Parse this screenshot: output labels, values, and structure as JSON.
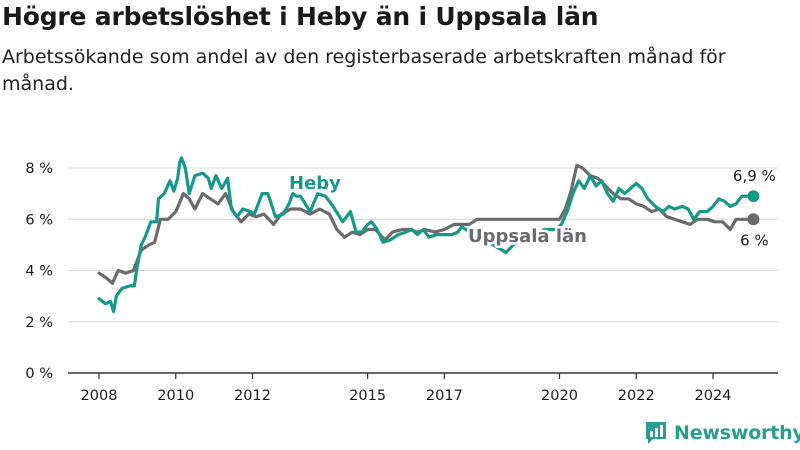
{
  "header": {
    "title": "Högre arbetslöshet i Heby än i Uppsala län",
    "subtitle": "Arbetssökande som andel av den registerbaserade arbetskraften månad för månad."
  },
  "colors": {
    "heby": "#17998a",
    "uppsala": "#6b6b6e",
    "grid": "#d9d9d9",
    "brand": "#2a9d8f"
  },
  "brand": {
    "name": "Newsworthy",
    "icon": "bar-chart-logo-icon"
  },
  "chart_data": {
    "type": "line",
    "title": "Högre arbetslöshet i Heby än i Uppsala län",
    "xlabel": "",
    "ylabel": "",
    "xlim": [
      2007.75,
      2025.6
    ],
    "ylim": [
      0,
      8.5
    ],
    "y_ticks": [
      0,
      2,
      4,
      6,
      8
    ],
    "y_tick_labels": [
      "0 %",
      "2 %",
      "4 %",
      "6 %",
      "8 %"
    ],
    "x_ticks": [
      2008,
      2010,
      2012,
      2015,
      2017,
      2020,
      2022,
      2024
    ],
    "x_tick_labels": [
      "2008",
      "2010",
      "2012",
      "2015",
      "2017",
      "2020",
      "2022",
      "2024"
    ],
    "grid": true,
    "series": [
      {
        "name": "Heby",
        "end_label": "6,9 %",
        "points": [
          [
            2008.0,
            2.9
          ],
          [
            2008.17,
            2.7
          ],
          [
            2008.3,
            2.8
          ],
          [
            2008.38,
            2.4
          ],
          [
            2008.45,
            3.0
          ],
          [
            2008.6,
            3.3
          ],
          [
            2008.8,
            3.4
          ],
          [
            2008.92,
            3.4
          ],
          [
            2009.0,
            4.2
          ],
          [
            2009.1,
            5.0
          ],
          [
            2009.2,
            5.3
          ],
          [
            2009.35,
            5.9
          ],
          [
            2009.5,
            5.9
          ],
          [
            2009.55,
            6.8
          ],
          [
            2009.7,
            7.0
          ],
          [
            2009.85,
            7.5
          ],
          [
            2009.95,
            7.1
          ],
          [
            2010.05,
            7.6
          ],
          [
            2010.1,
            8.2
          ],
          [
            2010.15,
            8.4
          ],
          [
            2010.25,
            8.0
          ],
          [
            2010.35,
            7.0
          ],
          [
            2010.5,
            7.7
          ],
          [
            2010.7,
            7.8
          ],
          [
            2010.85,
            7.6
          ],
          [
            2010.92,
            7.2
          ],
          [
            2011.05,
            7.7
          ],
          [
            2011.2,
            7.2
          ],
          [
            2011.35,
            7.6
          ],
          [
            2011.45,
            6.4
          ],
          [
            2011.6,
            6.1
          ],
          [
            2011.75,
            6.4
          ],
          [
            2011.95,
            6.3
          ],
          [
            2012.05,
            6.2
          ],
          [
            2012.25,
            7.0
          ],
          [
            2012.4,
            7.0
          ],
          [
            2012.6,
            6.1
          ],
          [
            2012.8,
            6.2
          ],
          [
            2012.95,
            6.6
          ],
          [
            2013.05,
            7.0
          ],
          [
            2013.15,
            6.9
          ],
          [
            2013.25,
            6.9
          ],
          [
            2013.5,
            6.3
          ],
          [
            2013.7,
            7.0
          ],
          [
            2013.9,
            6.9
          ],
          [
            2014.1,
            6.5
          ],
          [
            2014.35,
            5.9
          ],
          [
            2014.55,
            6.3
          ],
          [
            2014.7,
            5.5
          ],
          [
            2014.85,
            5.5
          ],
          [
            2015.0,
            5.8
          ],
          [
            2015.1,
            5.9
          ],
          [
            2015.25,
            5.6
          ],
          [
            2015.4,
            5.1
          ],
          [
            2015.6,
            5.2
          ],
          [
            2015.8,
            5.4
          ],
          [
            2016.0,
            5.5
          ],
          [
            2016.15,
            5.6
          ],
          [
            2016.3,
            5.4
          ],
          [
            2016.45,
            5.6
          ],
          [
            2016.6,
            5.3
          ],
          [
            2016.8,
            5.4
          ],
          [
            2017.0,
            5.4
          ],
          [
            2017.2,
            5.4
          ],
          [
            2017.35,
            5.5
          ],
          [
            2017.45,
            5.7
          ],
          [
            2018.5,
            4.8
          ],
          [
            2018.6,
            4.7
          ],
          [
            2018.8,
            5.0
          ],
          [
            2019.1,
            5.3
          ],
          [
            2019.4,
            5.4
          ],
          [
            2019.6,
            5.6
          ],
          [
            2019.9,
            5.6
          ],
          [
            2020.05,
            5.8
          ],
          [
            2020.2,
            6.3
          ],
          [
            2020.35,
            7.0
          ],
          [
            2020.5,
            7.5
          ],
          [
            2020.65,
            7.2
          ],
          [
            2020.8,
            7.7
          ],
          [
            2020.95,
            7.3
          ],
          [
            2021.1,
            7.5
          ],
          [
            2021.25,
            7.0
          ],
          [
            2021.4,
            6.7
          ],
          [
            2021.55,
            7.2
          ],
          [
            2021.7,
            7.0
          ],
          [
            2021.85,
            7.2
          ],
          [
            2022.0,
            7.4
          ],
          [
            2022.15,
            7.2
          ],
          [
            2022.3,
            6.8
          ],
          [
            2022.5,
            6.5
          ],
          [
            2022.7,
            6.3
          ],
          [
            2022.85,
            6.5
          ],
          [
            2023.0,
            6.4
          ],
          [
            2023.2,
            6.5
          ],
          [
            2023.35,
            6.4
          ],
          [
            2023.5,
            6.0
          ],
          [
            2023.65,
            6.3
          ],
          [
            2023.85,
            6.3
          ],
          [
            2024.0,
            6.5
          ],
          [
            2024.15,
            6.8
          ],
          [
            2024.3,
            6.7
          ],
          [
            2024.45,
            6.5
          ],
          [
            2024.6,
            6.6
          ],
          [
            2024.75,
            6.9
          ],
          [
            2025.0,
            6.9
          ]
        ]
      },
      {
        "name": "Uppsala län",
        "end_label": "6 %",
        "points": [
          [
            2008.0,
            3.9
          ],
          [
            2008.2,
            3.7
          ],
          [
            2008.35,
            3.5
          ],
          [
            2008.5,
            4.0
          ],
          [
            2008.7,
            3.9
          ],
          [
            2008.9,
            4.0
          ],
          [
            2009.1,
            4.8
          ],
          [
            2009.3,
            5.0
          ],
          [
            2009.45,
            5.1
          ],
          [
            2009.6,
            6.0
          ],
          [
            2009.8,
            6.0
          ],
          [
            2010.0,
            6.3
          ],
          [
            2010.2,
            7.0
          ],
          [
            2010.35,
            6.8
          ],
          [
            2010.5,
            6.4
          ],
          [
            2010.7,
            7.0
          ],
          [
            2010.9,
            6.8
          ],
          [
            2011.1,
            6.6
          ],
          [
            2011.3,
            7.0
          ],
          [
            2011.5,
            6.3
          ],
          [
            2011.7,
            5.9
          ],
          [
            2011.9,
            6.2
          ],
          [
            2012.1,
            6.1
          ],
          [
            2012.3,
            6.2
          ],
          [
            2012.55,
            5.8
          ],
          [
            2012.75,
            6.2
          ],
          [
            2013.0,
            6.4
          ],
          [
            2013.25,
            6.4
          ],
          [
            2013.5,
            6.2
          ],
          [
            2013.75,
            6.4
          ],
          [
            2014.0,
            6.2
          ],
          [
            2014.2,
            5.6
          ],
          [
            2014.4,
            5.3
          ],
          [
            2014.6,
            5.5
          ],
          [
            2014.8,
            5.4
          ],
          [
            2015.0,
            5.6
          ],
          [
            2015.2,
            5.6
          ],
          [
            2015.45,
            5.2
          ],
          [
            2015.65,
            5.5
          ],
          [
            2015.9,
            5.6
          ],
          [
            2016.1,
            5.6
          ],
          [
            2016.3,
            5.5
          ],
          [
            2016.5,
            5.6
          ],
          [
            2016.75,
            5.5
          ],
          [
            2017.0,
            5.6
          ],
          [
            2017.25,
            5.8
          ],
          [
            2017.45,
            5.8
          ],
          [
            2017.65,
            5.8
          ],
          [
            2017.85,
            6.0
          ],
          [
            2018.05,
            6.0
          ],
          [
            2018.25,
            6.0
          ],
          [
            2020.0,
            6.0
          ],
          [
            2020.15,
            6.4
          ],
          [
            2020.3,
            7.1
          ],
          [
            2020.45,
            8.1
          ],
          [
            2020.6,
            8.0
          ],
          [
            2020.8,
            7.7
          ],
          [
            2021.0,
            7.6
          ],
          [
            2021.2,
            7.3
          ],
          [
            2021.4,
            7.0
          ],
          [
            2021.6,
            6.8
          ],
          [
            2021.8,
            6.8
          ],
          [
            2022.0,
            6.6
          ],
          [
            2022.2,
            6.5
          ],
          [
            2022.4,
            6.3
          ],
          [
            2022.6,
            6.4
          ],
          [
            2022.8,
            6.1
          ],
          [
            2023.0,
            6.0
          ],
          [
            2023.2,
            5.9
          ],
          [
            2023.4,
            5.8
          ],
          [
            2023.6,
            6.0
          ],
          [
            2023.85,
            6.0
          ],
          [
            2024.05,
            5.9
          ],
          [
            2024.25,
            5.9
          ],
          [
            2024.45,
            5.6
          ],
          [
            2024.6,
            6.0
          ],
          [
            2024.8,
            6.0
          ],
          [
            2025.0,
            6.0
          ]
        ]
      }
    ]
  }
}
